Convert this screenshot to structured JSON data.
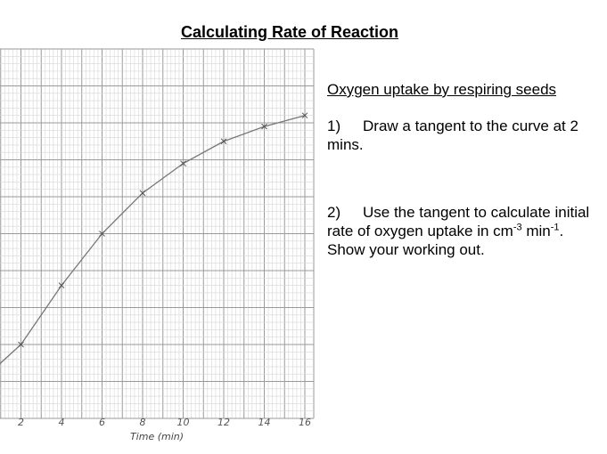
{
  "page": {
    "title": "Calculating Rate of Reaction"
  },
  "panel": {
    "heading": "Oxygen uptake by respiring seeds",
    "task1": {
      "num": "1)",
      "text": "Draw a tangent to the curve at 2 mins."
    },
    "task2": {
      "num": "2)",
      "text_a": "Use the tangent to calculate initial rate of oxygen uptake in cm",
      "sup_a": "-3",
      "text_b": " min",
      "sup_b": "-1",
      "text_c": ". Show your working out."
    }
  },
  "colors": {
    "grid_minor": "#d6d6d6",
    "grid_major": "#9a9a9a",
    "curve": "#777777",
    "text": "#000000"
  },
  "chart_data": {
    "type": "line",
    "xlabel": "Time (min)",
    "ylabel": "",
    "x_ticks": [
      2,
      4,
      6,
      8,
      10,
      12,
      14,
      16
    ],
    "xlim": [
      0,
      16
    ],
    "ylim": [
      0,
      10
    ],
    "grid": true,
    "series": [
      {
        "x": [
          0,
          2,
          4,
          6,
          8,
          10,
          12,
          14,
          16
        ],
        "values": [
          1.0,
          2.0,
          3.6,
          5.0,
          6.1,
          6.9,
          7.5,
          7.9,
          8.2
        ]
      }
    ]
  }
}
